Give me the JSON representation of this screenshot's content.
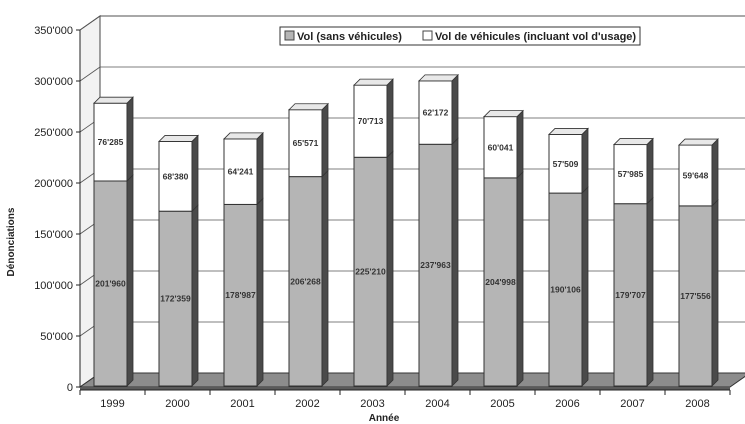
{
  "chart_data": {
    "type": "bar",
    "stacked": true,
    "style": "3d-columns",
    "categories": [
      "1999",
      "2000",
      "2001",
      "2002",
      "2003",
      "2004",
      "2005",
      "2006",
      "2007",
      "2008"
    ],
    "series": [
      {
        "name": "Vol (sans véhicules)",
        "values": [
          201960,
          172359,
          178987,
          206268,
          225210,
          237963,
          204998,
          190106,
          179707,
          177556
        ],
        "labels": [
          "201'960",
          "172'359",
          "178'987",
          "206'268",
          "225'210",
          "237'963",
          "204'998",
          "190'106",
          "179'707",
          "177'556"
        ],
        "color": "#b5b5b5"
      },
      {
        "name": "Vol de véhicules (incluant vol d'usage)",
        "values": [
          76285,
          68380,
          64241,
          65571,
          70713,
          62172,
          60041,
          57509,
          57985,
          59648
        ],
        "labels": [
          "76'285",
          "68'380",
          "64'241",
          "65'571",
          "70'713",
          "62'172",
          "60'041",
          "57'509",
          "57'985",
          "59'648"
        ],
        "color": "#ffffff"
      }
    ],
    "title": "",
    "xlabel": "Année",
    "ylabel": "Dénonciations",
    "ylim": [
      0,
      350000
    ],
    "yticks": [
      0,
      50000,
      100000,
      150000,
      200000,
      250000,
      300000,
      350000
    ],
    "ytick_labels": [
      "0",
      "50'000",
      "100'000",
      "150'000",
      "200'000",
      "250'000",
      "300'000",
      "350'000"
    ],
    "grid": true,
    "legend_position": "top-right"
  }
}
